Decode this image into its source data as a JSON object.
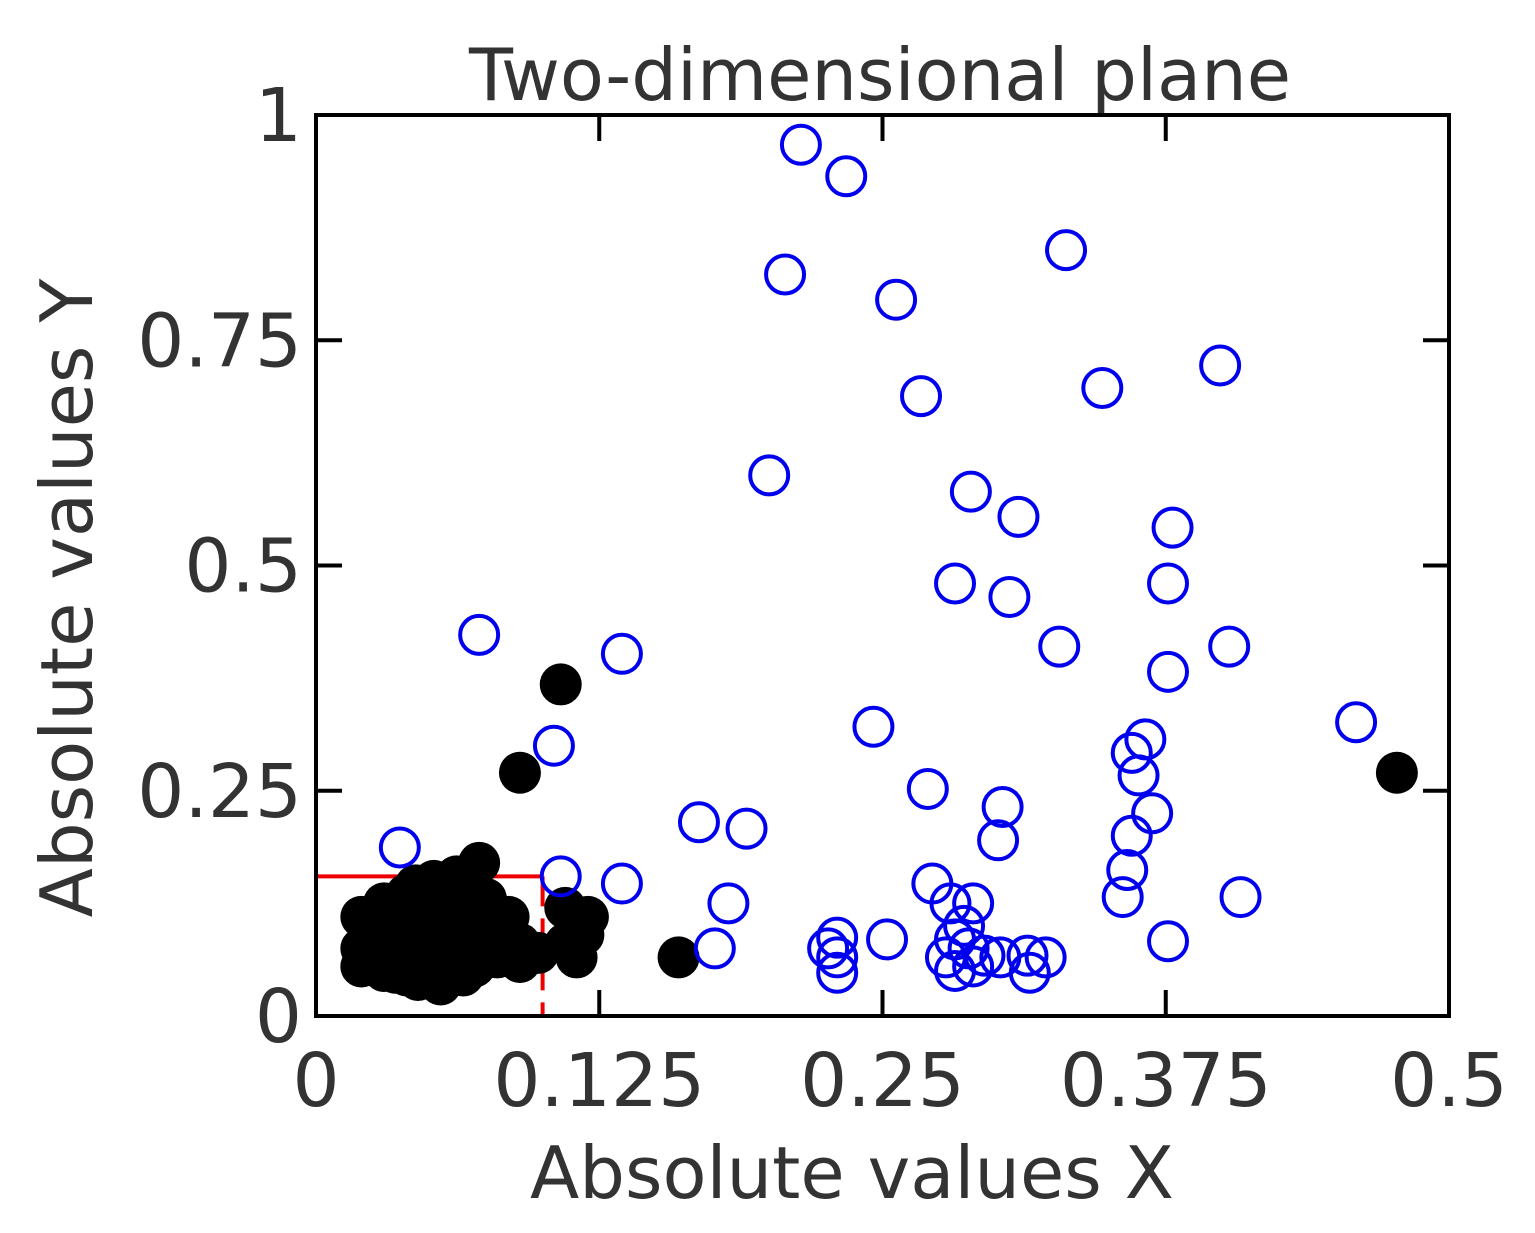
{
  "chart_data": {
    "type": "scatter",
    "title": "Two-dimensional plane",
    "xlabel": "Absolute values X",
    "ylabel": "Absolute values Y",
    "xlim": [
      0,
      0.5
    ],
    "ylim": [
      0,
      1
    ],
    "xticks": [
      0,
      0.125,
      0.25,
      0.375,
      0.5
    ],
    "xtick_labels": [
      "0",
      "0.125",
      "0.25",
      "0.375",
      "0.5"
    ],
    "yticks": [
      0,
      0.25,
      0.5,
      0.75,
      1
    ],
    "ytick_labels": [
      "0",
      "0.25",
      "0.5",
      "0.75",
      "1"
    ],
    "grid": false,
    "legend": "none",
    "colors": {
      "open": "#0000ee",
      "filled": "#000000",
      "region": "#ee0000",
      "axes": "#000000"
    },
    "region": {
      "x": [
        0,
        0.1
      ],
      "y": [
        0,
        0.155
      ]
    },
    "series": [
      {
        "marker": "open-circle",
        "points": [
          [
            0.214,
            0.967
          ],
          [
            0.234,
            0.932
          ],
          [
            0.207,
            0.823
          ],
          [
            0.256,
            0.795
          ],
          [
            0.331,
            0.85
          ],
          [
            0.267,
            0.688
          ],
          [
            0.347,
            0.697
          ],
          [
            0.399,
            0.722
          ],
          [
            0.2,
            0.6
          ],
          [
            0.289,
            0.582
          ],
          [
            0.31,
            0.554
          ],
          [
            0.378,
            0.542
          ],
          [
            0.282,
            0.48
          ],
          [
            0.306,
            0.465
          ],
          [
            0.376,
            0.48
          ],
          [
            0.072,
            0.423
          ],
          [
            0.135,
            0.402
          ],
          [
            0.328,
            0.41
          ],
          [
            0.403,
            0.41
          ],
          [
            0.376,
            0.382
          ],
          [
            0.105,
            0.3
          ],
          [
            0.246,
            0.321
          ],
          [
            0.459,
            0.326
          ],
          [
            0.366,
            0.307
          ],
          [
            0.36,
            0.292
          ],
          [
            0.363,
            0.267
          ],
          [
            0.27,
            0.252
          ],
          [
            0.303,
            0.232
          ],
          [
            0.301,
            0.195
          ],
          [
            0.369,
            0.225
          ],
          [
            0.36,
            0.2
          ],
          [
            0.037,
            0.187
          ],
          [
            0.169,
            0.215
          ],
          [
            0.19,
            0.208
          ],
          [
            0.358,
            0.162
          ],
          [
            0.108,
            0.155
          ],
          [
            0.135,
            0.147
          ],
          [
            0.272,
            0.147
          ],
          [
            0.356,
            0.132
          ],
          [
            0.182,
            0.125
          ],
          [
            0.408,
            0.132
          ],
          [
            0.28,
            0.125
          ],
          [
            0.29,
            0.125
          ],
          [
            0.176,
            0.075
          ],
          [
            0.23,
            0.087
          ],
          [
            0.226,
            0.075
          ],
          [
            0.23,
            0.065
          ],
          [
            0.23,
            0.048
          ],
          [
            0.252,
            0.085
          ],
          [
            0.282,
            0.085
          ],
          [
            0.288,
            0.075
          ],
          [
            0.295,
            0.067
          ],
          [
            0.302,
            0.065
          ],
          [
            0.314,
            0.067
          ],
          [
            0.322,
            0.065
          ],
          [
            0.282,
            0.05
          ],
          [
            0.29,
            0.055
          ],
          [
            0.315,
            0.048
          ],
          [
            0.376,
            0.083
          ],
          [
            0.286,
            0.1
          ],
          [
            0.278,
            0.065
          ]
        ]
      },
      {
        "marker": "filled-circle",
        "points": [
          [
            0.108,
            0.368
          ],
          [
            0.09,
            0.27
          ],
          [
            0.477,
            0.27
          ],
          [
            0.072,
            0.17
          ],
          [
            0.062,
            0.155
          ],
          [
            0.052,
            0.15
          ],
          [
            0.044,
            0.145
          ],
          [
            0.056,
            0.13
          ],
          [
            0.04,
            0.135
          ],
          [
            0.03,
            0.125
          ],
          [
            0.066,
            0.125
          ],
          [
            0.075,
            0.13
          ],
          [
            0.085,
            0.11
          ],
          [
            0.045,
            0.11
          ],
          [
            0.058,
            0.105
          ],
          [
            0.02,
            0.11
          ],
          [
            0.028,
            0.095
          ],
          [
            0.038,
            0.1
          ],
          [
            0.048,
            0.092
          ],
          [
            0.068,
            0.1
          ],
          [
            0.078,
            0.095
          ],
          [
            0.02,
            0.075
          ],
          [
            0.03,
            0.065
          ],
          [
            0.04,
            0.07
          ],
          [
            0.05,
            0.075
          ],
          [
            0.06,
            0.08
          ],
          [
            0.07,
            0.07
          ],
          [
            0.08,
            0.065
          ],
          [
            0.09,
            0.08
          ],
          [
            0.02,
            0.055
          ],
          [
            0.03,
            0.05
          ],
          [
            0.04,
            0.045
          ],
          [
            0.05,
            0.06
          ],
          [
            0.06,
            0.05
          ],
          [
            0.07,
            0.055
          ],
          [
            0.055,
            0.035
          ],
          [
            0.045,
            0.04
          ],
          [
            0.035,
            0.048
          ],
          [
            0.065,
            0.045
          ],
          [
            0.09,
            0.06
          ],
          [
            0.098,
            0.07
          ],
          [
            0.11,
            0.12
          ],
          [
            0.12,
            0.11
          ],
          [
            0.115,
            0.1
          ],
          [
            0.11,
            0.08
          ],
          [
            0.115,
            0.065
          ],
          [
            0.16,
            0.065
          ],
          [
            0.118,
            0.09
          ],
          [
            0.085,
            0.085
          ],
          [
            0.025,
            0.085
          ]
        ]
      }
    ]
  }
}
